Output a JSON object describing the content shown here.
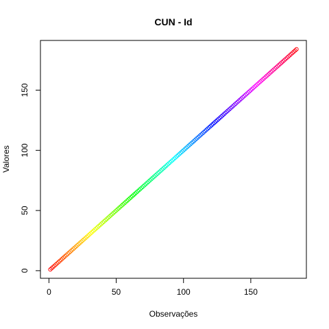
{
  "chart_data": {
    "type": "scatter",
    "title": "CUN - Id",
    "xlabel": "Observações",
    "ylabel": "Valores",
    "xlim": [
      1,
      184
    ],
    "ylim": [
      1,
      184
    ],
    "x_ticks": [
      0,
      50,
      100,
      150
    ],
    "y_ticks": [
      0,
      50,
      100,
      150
    ],
    "x_tick_labels": [
      "0",
      "50",
      "100",
      "150"
    ],
    "y_tick_labels": [
      "0",
      "50",
      "100",
      "150"
    ],
    "series": [
      {
        "x_start": 1,
        "x_end": 184,
        "y_equals_x": true,
        "marker": "open-circle",
        "colors": "rainbow"
      }
    ],
    "grid": false,
    "legend": "none"
  }
}
